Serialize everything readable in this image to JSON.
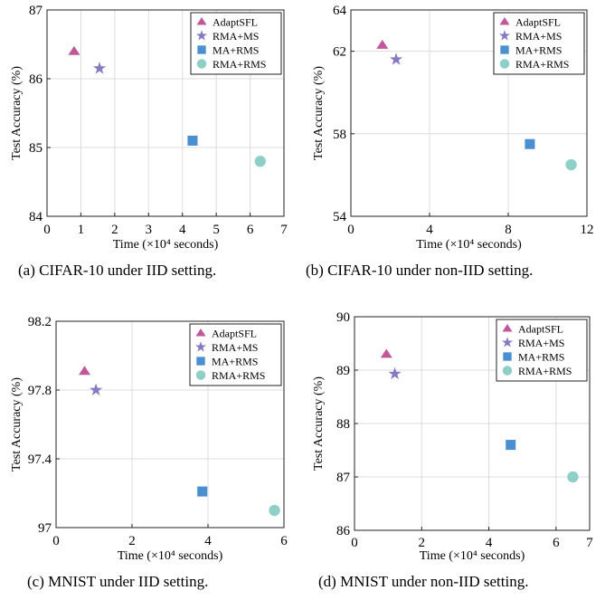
{
  "chart_data": [
    {
      "type": "scatter",
      "panel": "a",
      "caption": "(a) CIFAR-10 under IID setting.",
      "xlabel": "Time (×10⁴ seconds)",
      "ylabel": "Test Accuracy (%)",
      "xlim": [
        0,
        7
      ],
      "ylim": [
        84,
        87
      ],
      "xticks": [
        0,
        1,
        2,
        3,
        4,
        5,
        6,
        7
      ],
      "yticks": [
        84,
        85,
        86,
        87
      ],
      "grid": true,
      "legend_position": "top-right",
      "series": [
        {
          "name": "AdaptSFL",
          "marker": "triangle",
          "color": "#c0589a",
          "x": 0.8,
          "y": 86.4
        },
        {
          "name": "RMA+MS",
          "marker": "star",
          "color": "#8779c2",
          "x": 1.55,
          "y": 86.15
        },
        {
          "name": "MA+RMS",
          "marker": "square",
          "color": "#4a90d1",
          "x": 4.3,
          "y": 85.1
        },
        {
          "name": "RMA+RMS",
          "marker": "circle",
          "color": "#8ecfc7",
          "x": 6.3,
          "y": 84.8
        }
      ]
    },
    {
      "type": "scatter",
      "panel": "b",
      "caption": "(b) CIFAR-10 under non-IID setting.",
      "xlabel": "Time (×10⁴ seconds)",
      "ylabel": "Test Accuracy (%)",
      "xlim": [
        0,
        12
      ],
      "ylim": [
        54,
        64
      ],
      "xticks": [
        0,
        4,
        8,
        12
      ],
      "yticks": [
        54,
        58,
        62,
        64
      ],
      "grid": true,
      "legend_position": "top-right",
      "series": [
        {
          "name": "AdaptSFL",
          "marker": "triangle",
          "color": "#c0589a",
          "x": 1.6,
          "y": 62.3
        },
        {
          "name": "RMA+MS",
          "marker": "star",
          "color": "#8779c2",
          "x": 2.3,
          "y": 61.6
        },
        {
          "name": "MA+RMS",
          "marker": "square",
          "color": "#4a90d1",
          "x": 9.1,
          "y": 57.5
        },
        {
          "name": "RMA+RMS",
          "marker": "circle",
          "color": "#8ecfc7",
          "x": 11.2,
          "y": 56.5
        }
      ]
    },
    {
      "type": "scatter",
      "panel": "c",
      "caption": "(c) MNIST under IID setting.",
      "xlabel": "Time (×10⁴ seconds)",
      "ylabel": "Test Accuracy (%)",
      "xlim": [
        0,
        6
      ],
      "ylim": [
        97,
        98.2
      ],
      "xticks": [
        0,
        2,
        4,
        6
      ],
      "yticks": [
        97,
        97.4,
        97.8,
        98.2
      ],
      "grid": true,
      "legend_position": "top-right",
      "series": [
        {
          "name": "AdaptSFL",
          "marker": "triangle",
          "color": "#c0589a",
          "x": 0.75,
          "y": 97.91
        },
        {
          "name": "RMA+MS",
          "marker": "star",
          "color": "#8779c2",
          "x": 1.05,
          "y": 97.8
        },
        {
          "name": "MA+RMS",
          "marker": "square",
          "color": "#4a90d1",
          "x": 3.85,
          "y": 97.21
        },
        {
          "name": "RMA+RMS",
          "marker": "circle",
          "color": "#8ecfc7",
          "x": 5.75,
          "y": 97.1
        }
      ]
    },
    {
      "type": "scatter",
      "panel": "d",
      "caption": "(d) MNIST under non-IID setting.",
      "xlabel": "Time (×10⁴ seconds)",
      "ylabel": "Test Accuracy (%)",
      "xlim": [
        0,
        7
      ],
      "ylim": [
        86,
        90
      ],
      "xticks": [
        0,
        2,
        4,
        6,
        7
      ],
      "yticks": [
        86,
        87,
        88,
        89,
        90
      ],
      "grid": true,
      "legend_position": "top-right",
      "series": [
        {
          "name": "AdaptSFL",
          "marker": "triangle",
          "color": "#c0589a",
          "x": 0.95,
          "y": 89.3
        },
        {
          "name": "RMA+MS",
          "marker": "star",
          "color": "#8779c2",
          "x": 1.2,
          "y": 88.93
        },
        {
          "name": "MA+RMS",
          "marker": "square",
          "color": "#4a90d1",
          "x": 4.65,
          "y": 87.6
        },
        {
          "name": "RMA+RMS",
          "marker": "circle",
          "color": "#8ecfc7",
          "x": 6.5,
          "y": 87.0
        }
      ]
    }
  ]
}
